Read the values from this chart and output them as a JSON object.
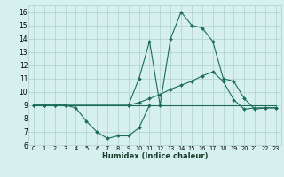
{
  "xlabel": "Humidex (Indice chaleur)",
  "x_values": [
    0,
    1,
    2,
    3,
    4,
    5,
    6,
    7,
    8,
    9,
    10,
    11,
    12,
    13,
    14,
    15,
    16,
    17,
    18,
    19,
    20,
    21,
    22,
    23
  ],
  "line1_x": [
    0,
    1,
    2,
    3,
    4,
    5,
    6,
    7,
    8,
    9,
    10,
    11
  ],
  "line1_y": [
    9,
    9,
    9,
    9,
    8.8,
    7.8,
    7.0,
    6.5,
    6.7,
    6.7,
    7.3,
    9.0
  ],
  "line2_y": [
    9,
    9,
    9,
    9,
    9,
    9,
    9,
    9,
    9,
    9,
    9,
    9,
    9,
    9,
    9,
    9,
    9,
    9,
    9,
    9,
    9,
    9,
    9,
    9
  ],
  "line3_x": [
    0,
    1,
    2,
    3,
    9,
    10,
    11,
    12,
    13,
    14,
    15,
    16,
    17,
    18,
    19,
    20,
    21,
    22,
    23
  ],
  "line3_y": [
    9,
    9,
    9,
    9,
    9,
    9.2,
    9.5,
    9.8,
    10.2,
    10.5,
    10.8,
    11.2,
    11.5,
    10.8,
    9.4,
    8.7,
    8.8,
    8.8,
    8.8
  ],
  "line4_x": [
    9,
    10,
    11,
    12,
    13,
    14,
    15,
    16,
    17,
    18,
    19,
    20,
    21,
    22,
    23
  ],
  "line4_y": [
    9,
    11.0,
    13.8,
    9.0,
    14.0,
    16.0,
    15.0,
    14.8,
    13.8,
    11.0,
    10.8,
    9.5,
    8.7,
    8.8,
    8.8
  ],
  "ylim": [
    6,
    16.5
  ],
  "yticks": [
    6,
    7,
    8,
    9,
    10,
    11,
    12,
    13,
    14,
    15,
    16
  ],
  "xlim": [
    -0.5,
    23.5
  ],
  "line_color": "#1a6b5a",
  "bg_color": "#d6f0ee",
  "grid_color": "#b0d0cc"
}
